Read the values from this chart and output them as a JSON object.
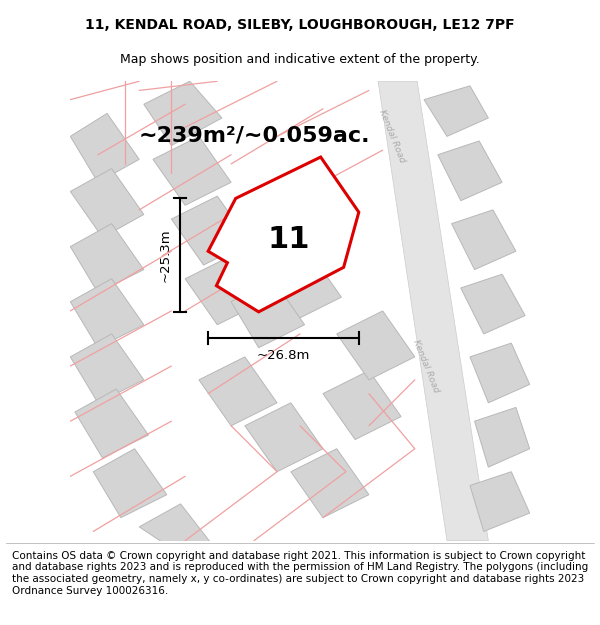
{
  "title_line1": "11, KENDAL ROAD, SILEBY, LOUGHBOROUGH, LE12 7PF",
  "title_line2": "Map shows position and indicative extent of the property.",
  "footer_text": "Contains OS data © Crown copyright and database right 2021. This information is subject to Crown copyright and database rights 2023 and is reproduced with the permission of HM Land Registry. The polygons (including the associated geometry, namely x, y co-ordinates) are subject to Crown copyright and database rights 2023 Ordnance Survey 100026316.",
  "area_label": "~239m²/~0.059ac.",
  "property_number": "11",
  "width_label": "~26.8m",
  "height_label": "~25.3m",
  "map_bg": "#f2f2f2",
  "pink_line_color": "#f0a0a0",
  "red_poly_color": "#dd0000",
  "title_fontsize": 10,
  "subtitle_fontsize": 9,
  "footer_fontsize": 7.5,
  "area_fontsize": 16,
  "number_fontsize": 22
}
